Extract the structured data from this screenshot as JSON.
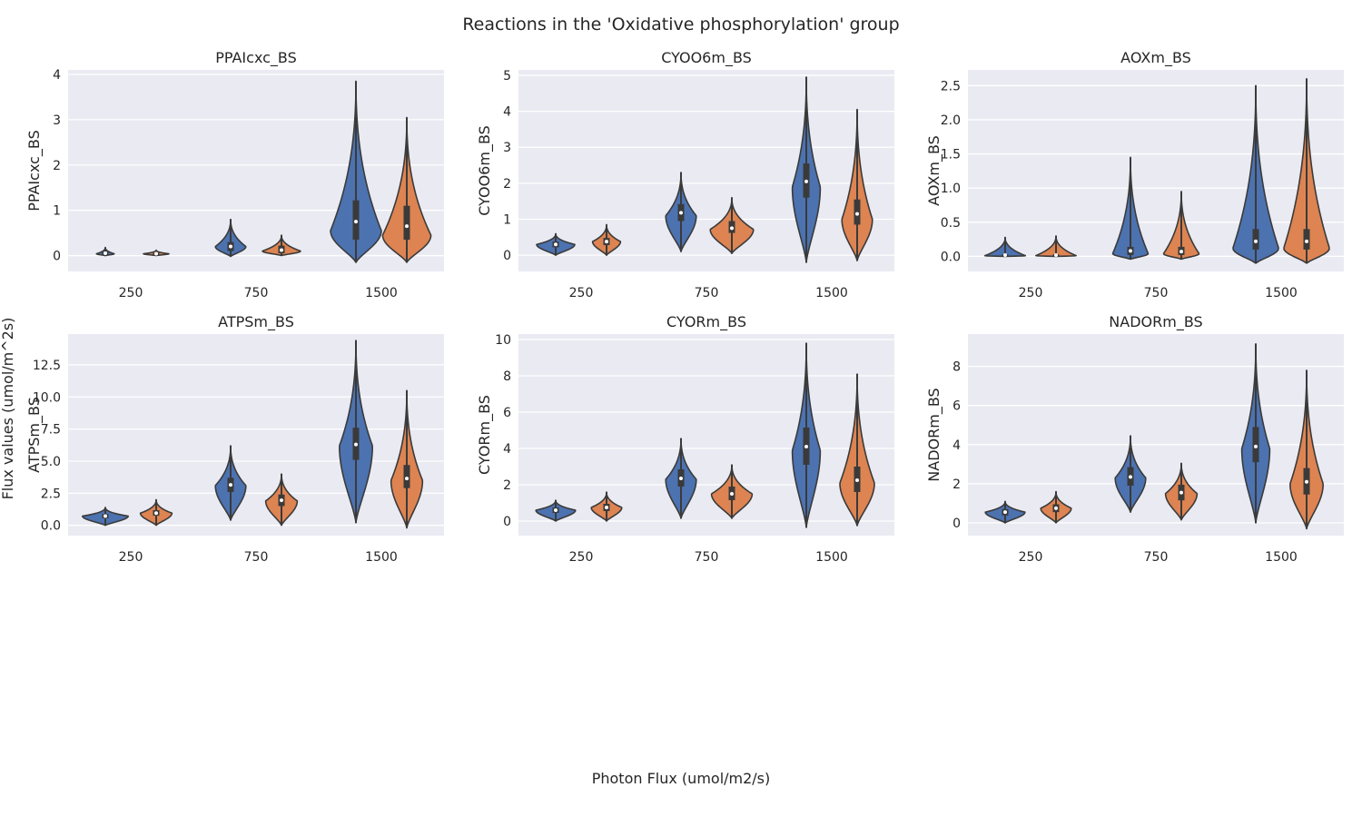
{
  "figure": {
    "title": "Reactions in the 'Oxidative phosphorylation' group",
    "supxlabel": "Photon Flux (umol/m2/s)",
    "supylabel": "Flux values (umol/m^2s)"
  },
  "colors": {
    "panel_bg": "#EAEAF2",
    "grid": "#FFFFFF",
    "series_1": "#4C72B0",
    "series_2": "#DD8452",
    "outline": "#3A3A3A",
    "box": "#3A3A3A",
    "median": "#FFFFFF"
  },
  "chart_data": [
    {
      "type": "violin",
      "title": "PPAIcxc_BS",
      "ylabel": "PPAIcxc_BS",
      "categories": [
        "250",
        "750",
        "1500"
      ],
      "yticks": [
        "0",
        "1",
        "2",
        "3",
        "4"
      ],
      "yticks_values": [
        0,
        1,
        2,
        3,
        4
      ],
      "ylim": [
        -0.35,
        4.1
      ],
      "grid": true,
      "series": [
        {
          "groups": [
            {
              "category": "250",
              "min": 0.0,
              "max": 0.18,
              "q1": 0.02,
              "median": 0.05,
              "q3": 0.08,
              "mode": 0.04,
              "max_density": 0.35
            },
            {
              "category": "750",
              "min": -0.02,
              "max": 0.8,
              "q1": 0.1,
              "median": 0.2,
              "q3": 0.3,
              "mode": 0.2,
              "max_density": 0.6
            },
            {
              "category": "1500",
              "min": -0.15,
              "max": 3.85,
              "q1": 0.35,
              "median": 0.75,
              "q3": 1.22,
              "mode": 0.55,
              "max_density": 1.0
            }
          ]
        },
        {
          "groups": [
            {
              "category": "250",
              "min": 0.0,
              "max": 0.12,
              "q1": 0.02,
              "median": 0.04,
              "q3": 0.06,
              "mode": 0.04,
              "max_density": 0.5
            },
            {
              "category": "750",
              "min": 0.0,
              "max": 0.45,
              "q1": 0.05,
              "median": 0.12,
              "q3": 0.22,
              "mode": 0.1,
              "max_density": 0.75
            },
            {
              "category": "1500",
              "min": -0.15,
              "max": 3.05,
              "q1": 0.35,
              "median": 0.65,
              "q3": 1.1,
              "mode": 0.45,
              "max_density": 0.95
            }
          ]
        }
      ]
    },
    {
      "type": "violin",
      "title": "CYOO6m_BS",
      "ylabel": "CYOO6m_BS",
      "categories": [
        "250",
        "750",
        "1500"
      ],
      "yticks": [
        "0",
        "1",
        "2",
        "3",
        "4",
        "5"
      ],
      "yticks_values": [
        0,
        1,
        2,
        3,
        4,
        5
      ],
      "ylim": [
        -0.45,
        5.15
      ],
      "grid": true,
      "series": [
        {
          "groups": [
            {
              "category": "250",
              "min": 0.0,
              "max": 0.6,
              "q1": 0.22,
              "median": 0.3,
              "q3": 0.38,
              "mode": 0.3,
              "max_density": 0.75
            },
            {
              "category": "750",
              "min": 0.1,
              "max": 2.3,
              "q1": 0.95,
              "median": 1.18,
              "q3": 1.42,
              "mode": 1.1,
              "max_density": 0.6
            },
            {
              "category": "1500",
              "min": -0.2,
              "max": 4.95,
              "q1": 1.6,
              "median": 2.05,
              "q3": 2.55,
              "mode": 1.9,
              "max_density": 0.55
            }
          ]
        },
        {
          "groups": [
            {
              "category": "250",
              "min": 0.0,
              "max": 0.85,
              "q1": 0.28,
              "median": 0.38,
              "q3": 0.48,
              "mode": 0.38,
              "max_density": 0.55
            },
            {
              "category": "750",
              "min": 0.05,
              "max": 1.6,
              "q1": 0.62,
              "median": 0.75,
              "q3": 0.95,
              "mode": 0.72,
              "max_density": 0.85
            },
            {
              "category": "1500",
              "min": -0.15,
              "max": 4.05,
              "q1": 0.85,
              "median": 1.15,
              "q3": 1.55,
              "mode": 1.0,
              "max_density": 0.6
            }
          ]
        }
      ]
    },
    {
      "type": "violin",
      "title": "AOXm_BS",
      "ylabel": "AOXm_BS",
      "categories": [
        "250",
        "750",
        "1500"
      ],
      "yticks": [
        "0.0",
        "0.5",
        "1.0",
        "1.5",
        "2.0",
        "2.5"
      ],
      "yticks_values": [
        0,
        0.5,
        1.0,
        1.5,
        2.0,
        2.5
      ],
      "ylim": [
        -0.22,
        2.73
      ],
      "grid": true,
      "series": [
        {
          "groups": [
            {
              "category": "250",
              "min": 0.0,
              "max": 0.28,
              "q1": 0.0,
              "median": 0.02,
              "q3": 0.03,
              "mode": 0.01,
              "max_density": 0.8
            },
            {
              "category": "750",
              "min": -0.04,
              "max": 1.45,
              "q1": 0.02,
              "median": 0.08,
              "q3": 0.14,
              "mode": 0.04,
              "max_density": 0.7
            },
            {
              "category": "1500",
              "min": -0.1,
              "max": 2.5,
              "q1": 0.1,
              "median": 0.22,
              "q3": 0.4,
              "mode": 0.12,
              "max_density": 0.9
            }
          ]
        },
        {
          "groups": [
            {
              "category": "250",
              "min": 0.0,
              "max": 0.3,
              "q1": 0.0,
              "median": 0.02,
              "q3": 0.03,
              "mode": 0.01,
              "max_density": 0.8
            },
            {
              "category": "750",
              "min": -0.04,
              "max": 0.95,
              "q1": 0.02,
              "median": 0.07,
              "q3": 0.14,
              "mode": 0.04,
              "max_density": 0.7
            },
            {
              "category": "1500",
              "min": -0.1,
              "max": 2.6,
              "q1": 0.1,
              "median": 0.22,
              "q3": 0.4,
              "mode": 0.12,
              "max_density": 0.9
            }
          ]
        }
      ]
    },
    {
      "type": "violin",
      "title": "ATPSm_BS",
      "ylabel": "ATPSm_BS",
      "categories": [
        "250",
        "750",
        "1500"
      ],
      "yticks": [
        "0.0",
        "2.5",
        "5.0",
        "7.5",
        "10.0",
        "12.5"
      ],
      "yticks_values": [
        0,
        2.5,
        5.0,
        7.5,
        10.0,
        12.5
      ],
      "ylim": [
        -0.8,
        14.9
      ],
      "grid": true,
      "series": [
        {
          "groups": [
            {
              "category": "250",
              "min": 0.0,
              "max": 1.4,
              "q1": 0.55,
              "median": 0.72,
              "q3": 0.88,
              "mode": 0.72,
              "max_density": 0.9
            },
            {
              "category": "750",
              "min": 0.4,
              "max": 6.2,
              "q1": 2.6,
              "median": 3.15,
              "q3": 3.7,
              "mode": 3.1,
              "max_density": 0.6
            },
            {
              "category": "1500",
              "min": 0.2,
              "max": 14.4,
              "q1": 5.1,
              "median": 6.3,
              "q3": 7.6,
              "mode": 6.2,
              "max_density": 0.65
            }
          ]
        },
        {
          "groups": [
            {
              "category": "250",
              "min": 0.0,
              "max": 2.0,
              "q1": 0.75,
              "median": 0.95,
              "q3": 1.18,
              "mode": 0.95,
              "max_density": 0.62
            },
            {
              "category": "750",
              "min": 0.0,
              "max": 4.0,
              "q1": 1.5,
              "median": 1.95,
              "q3": 2.4,
              "mode": 1.9,
              "max_density": 0.62
            },
            {
              "category": "1500",
              "min": -0.2,
              "max": 10.5,
              "q1": 2.9,
              "median": 3.65,
              "q3": 4.7,
              "mode": 3.5,
              "max_density": 0.62
            }
          ]
        }
      ]
    },
    {
      "type": "violin",
      "title": "CYORm_BS",
      "ylabel": "CYORm_BS",
      "categories": [
        "250",
        "750",
        "1500"
      ],
      "yticks": [
        "0",
        "2",
        "4",
        "6",
        "8",
        "10"
      ],
      "yticks_values": [
        0,
        2,
        4,
        6,
        8,
        10
      ],
      "ylim": [
        -0.8,
        10.3
      ],
      "grid": true,
      "series": [
        {
          "groups": [
            {
              "category": "250",
              "min": 0.0,
              "max": 1.15,
              "q1": 0.45,
              "median": 0.6,
              "q3": 0.75,
              "mode": 0.6,
              "max_density": 0.78
            },
            {
              "category": "750",
              "min": 0.15,
              "max": 4.55,
              "q1": 1.9,
              "median": 2.35,
              "q3": 2.85,
              "mode": 2.3,
              "max_density": 0.6
            },
            {
              "category": "1500",
              "min": -0.35,
              "max": 9.8,
              "q1": 3.1,
              "median": 4.1,
              "q3": 5.15,
              "mode": 3.9,
              "max_density": 0.55
            }
          ]
        },
        {
          "groups": [
            {
              "category": "250",
              "min": 0.0,
              "max": 1.6,
              "q1": 0.55,
              "median": 0.75,
              "q3": 0.95,
              "mode": 0.75,
              "max_density": 0.6
            },
            {
              "category": "750",
              "min": 0.15,
              "max": 3.1,
              "q1": 1.15,
              "median": 1.5,
              "q3": 1.9,
              "mode": 1.5,
              "max_density": 0.8
            },
            {
              "category": "1500",
              "min": -0.25,
              "max": 8.1,
              "q1": 1.6,
              "median": 2.25,
              "q3": 3.0,
              "mode": 2.1,
              "max_density": 0.68
            }
          ]
        }
      ]
    },
    {
      "type": "violin",
      "title": "NADORm_BS",
      "ylabel": "NADORm_BS",
      "categories": [
        "250",
        "750",
        "1500"
      ],
      "yticks": [
        "0",
        "2",
        "4",
        "6",
        "8"
      ],
      "yticks_values": [
        0,
        2,
        4,
        6,
        8
      ],
      "ylim": [
        -0.65,
        9.65
      ],
      "grid": true,
      "series": [
        {
          "groups": [
            {
              "category": "250",
              "min": 0.0,
              "max": 1.1,
              "q1": 0.38,
              "median": 0.55,
              "q3": 0.7,
              "mode": 0.55,
              "max_density": 0.78
            },
            {
              "category": "750",
              "min": 0.55,
              "max": 4.45,
              "q1": 1.9,
              "median": 2.35,
              "q3": 2.85,
              "mode": 2.3,
              "max_density": 0.6
            },
            {
              "category": "1500",
              "min": 0.0,
              "max": 9.15,
              "q1": 3.1,
              "median": 3.9,
              "q3": 4.9,
              "mode": 3.8,
              "max_density": 0.55
            }
          ]
        },
        {
          "groups": [
            {
              "category": "250",
              "min": 0.0,
              "max": 1.6,
              "q1": 0.55,
              "median": 0.75,
              "q3": 0.95,
              "mode": 0.75,
              "max_density": 0.6
            },
            {
              "category": "750",
              "min": 0.15,
              "max": 3.05,
              "q1": 1.15,
              "median": 1.55,
              "q3": 1.95,
              "mode": 1.5,
              "max_density": 0.62
            },
            {
              "category": "1500",
              "min": -0.3,
              "max": 7.8,
              "q1": 1.45,
              "median": 2.1,
              "q3": 2.8,
              "mode": 2.0,
              "max_density": 0.65
            }
          ]
        }
      ]
    }
  ]
}
